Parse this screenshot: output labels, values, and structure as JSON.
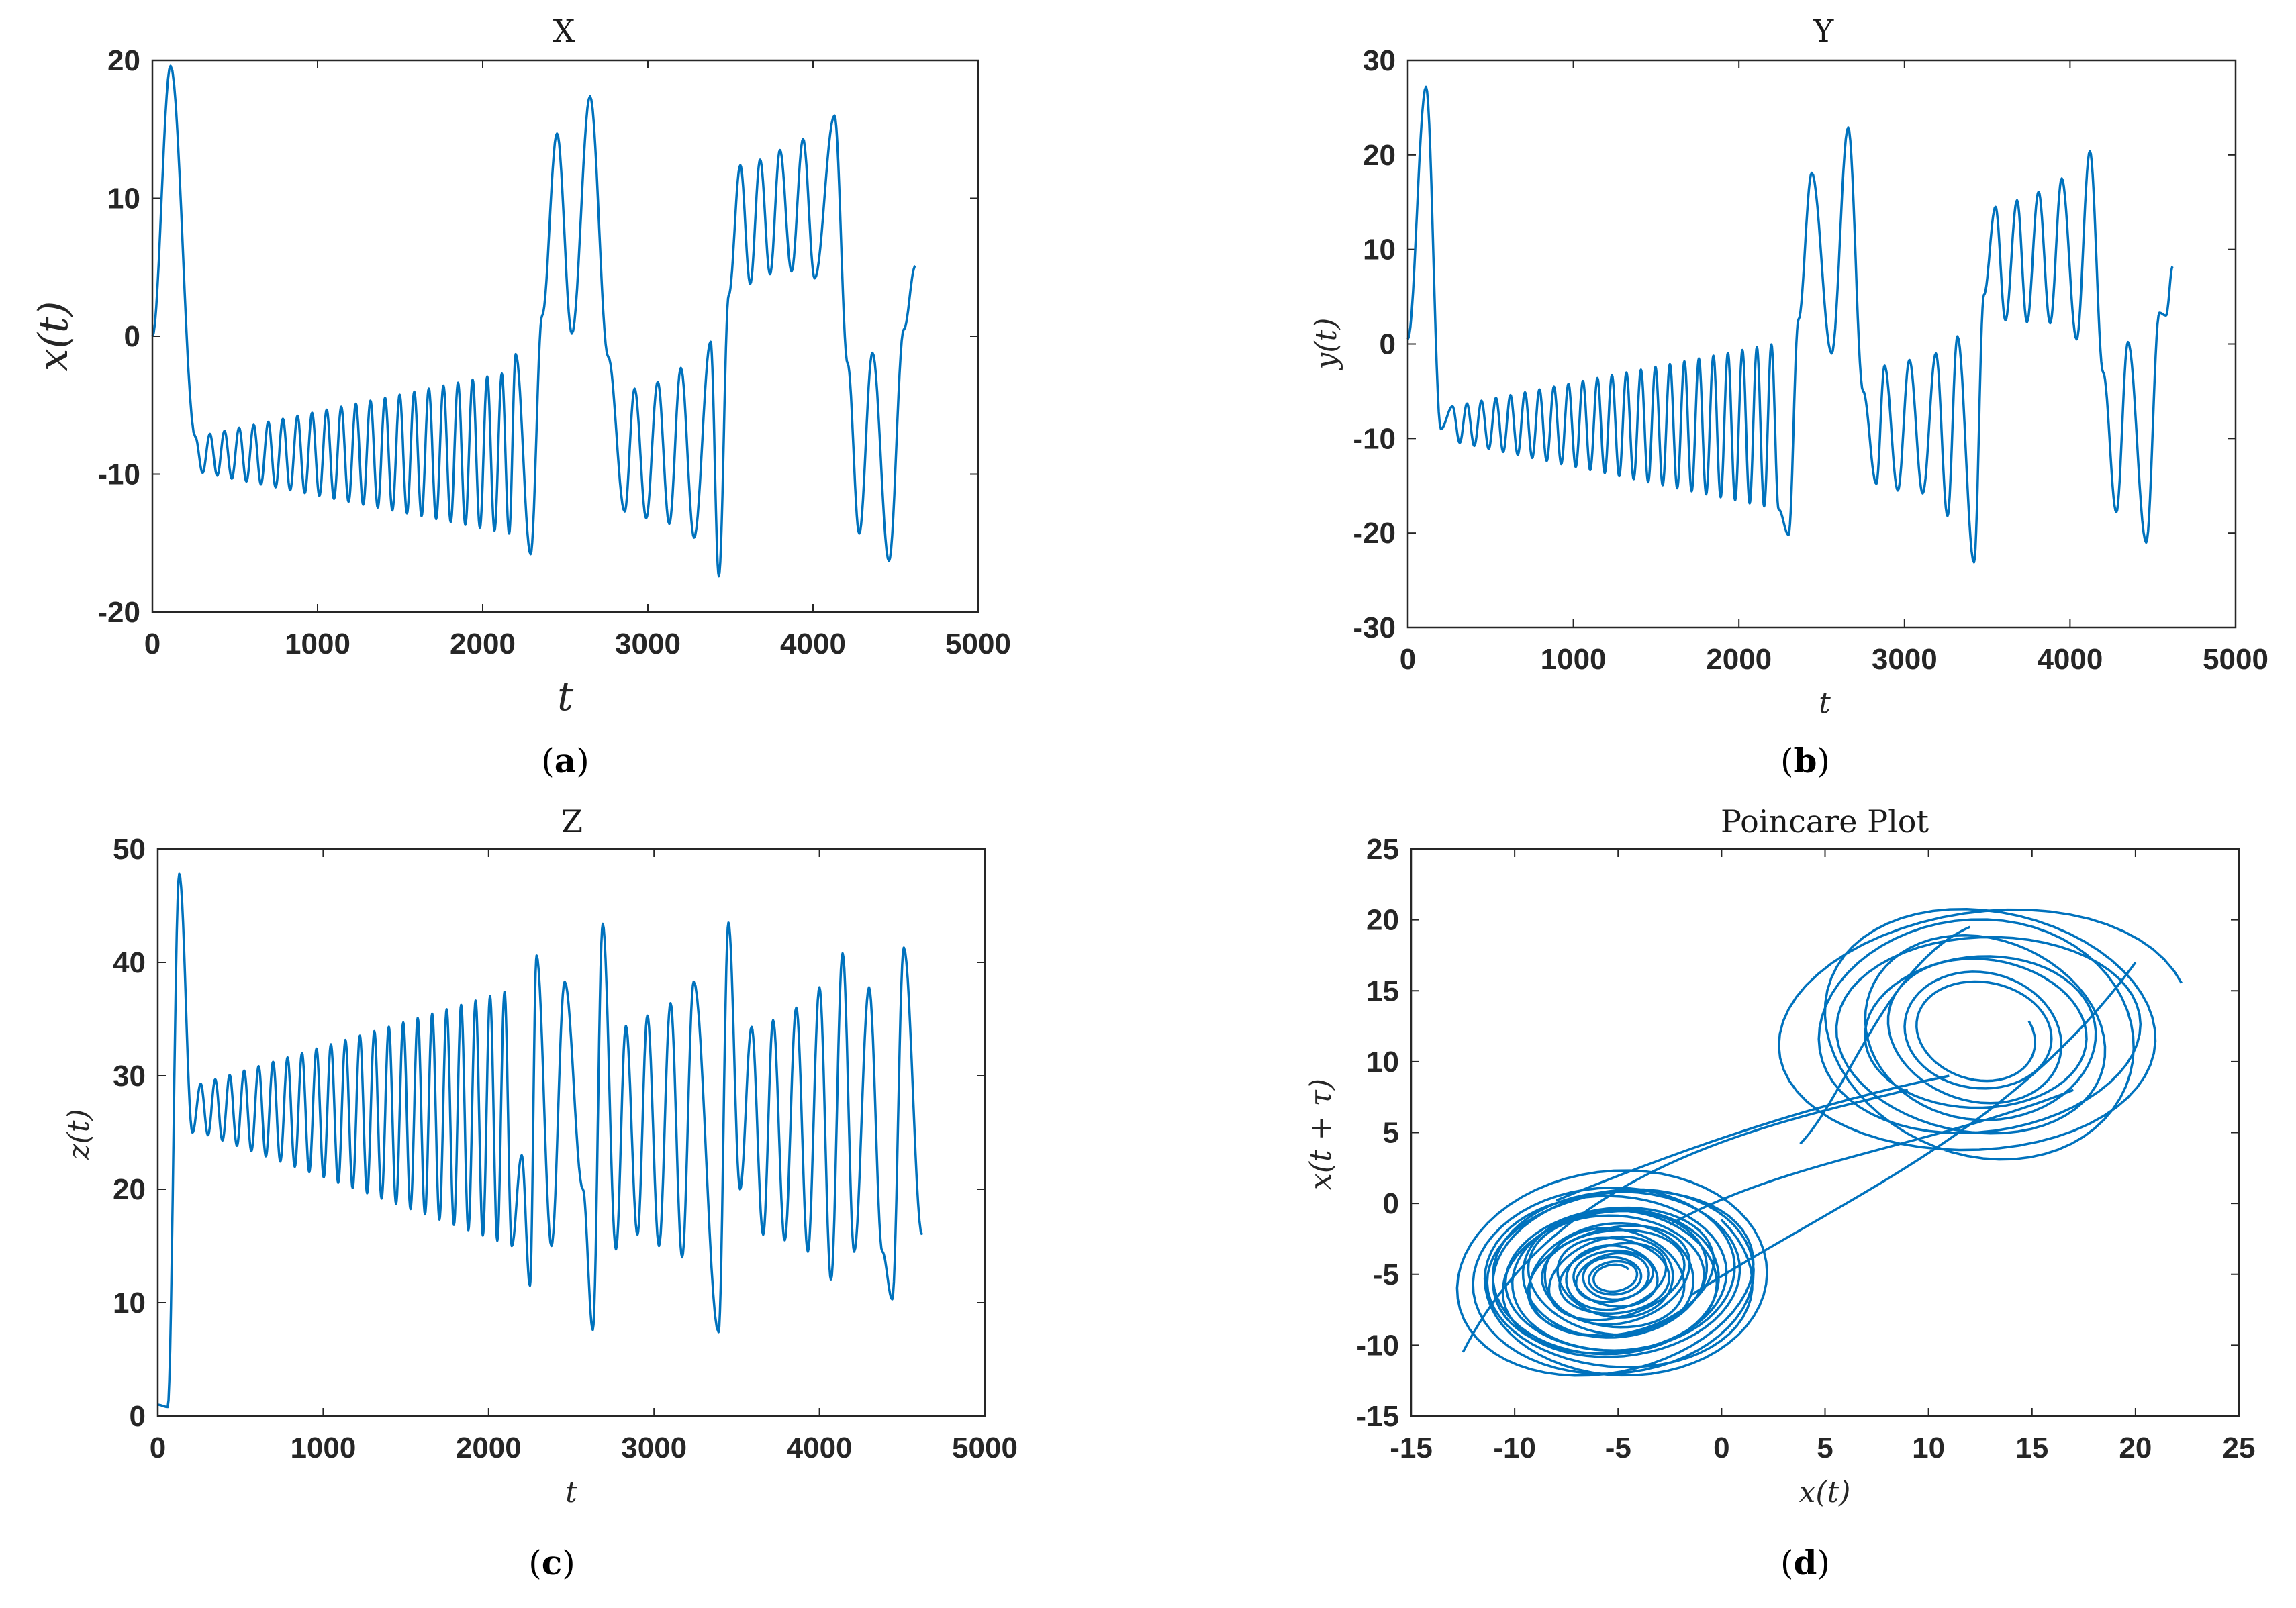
{
  "chart_data": [
    {
      "id": "a",
      "type": "line",
      "title": "X",
      "xlabel": "t",
      "ylabel": "x(t)",
      "caption_letter": "a",
      "xlim": [
        0,
        5000
      ],
      "ylim": [
        -20,
        20
      ],
      "xticks": [
        0,
        1000,
        2000,
        3000,
        4000,
        5000
      ],
      "yticks": [
        -20,
        -10,
        0,
        10,
        20
      ],
      "t_end": 4620,
      "segments": [
        {
          "kind": "peak",
          "t": 0,
          "v": 0
        },
        {
          "kind": "peak",
          "t": 110,
          "v": 19.6
        },
        {
          "kind": "osc",
          "t0": 260,
          "t1": 2160,
          "n": 22,
          "hi0": -7.3,
          "hi1": -2.6,
          "lo0": -9.8,
          "lo1": -14.3
        },
        {
          "kind": "peak",
          "t": 2200,
          "v": -1.3
        },
        {
          "kind": "peak",
          "t": 2290,
          "v": -15.8
        },
        {
          "kind": "peak",
          "t": 2360,
          "v": 1.5
        },
        {
          "kind": "peak",
          "t": 2450,
          "v": 14.7
        },
        {
          "kind": "peak",
          "t": 2540,
          "v": 0.2
        },
        {
          "kind": "peak",
          "t": 2650,
          "v": 17.4
        },
        {
          "kind": "peak",
          "t": 2760,
          "v": -1.5
        },
        {
          "kind": "peak",
          "t": 2860,
          "v": -12.7
        },
        {
          "kind": "peak",
          "t": 2920,
          "v": -3.8
        },
        {
          "kind": "peak",
          "t": 2990,
          "v": -13.2
        },
        {
          "kind": "peak",
          "t": 3060,
          "v": -3.3
        },
        {
          "kind": "peak",
          "t": 3130,
          "v": -13.6
        },
        {
          "kind": "peak",
          "t": 3200,
          "v": -2.3
        },
        {
          "kind": "peak",
          "t": 3280,
          "v": -14.6
        },
        {
          "kind": "peak",
          "t": 3380,
          "v": -0.4
        },
        {
          "kind": "peak",
          "t": 3430,
          "v": -17.4
        },
        {
          "kind": "peak",
          "t": 3490,
          "v": 3.0
        },
        {
          "kind": "peak",
          "t": 3560,
          "v": 12.4
        },
        {
          "kind": "peak",
          "t": 3620,
          "v": 3.8
        },
        {
          "kind": "peak",
          "t": 3680,
          "v": 12.8
        },
        {
          "kind": "peak",
          "t": 3740,
          "v": 4.5
        },
        {
          "kind": "peak",
          "t": 3800,
          "v": 13.5
        },
        {
          "kind": "peak",
          "t": 3870,
          "v": 4.7
        },
        {
          "kind": "peak",
          "t": 3940,
          "v": 14.3
        },
        {
          "kind": "peak",
          "t": 4010,
          "v": 4.2
        },
        {
          "kind": "peak",
          "t": 4130,
          "v": 16.0
        },
        {
          "kind": "peak",
          "t": 4210,
          "v": -2.0
        },
        {
          "kind": "peak",
          "t": 4280,
          "v": -14.3
        },
        {
          "kind": "peak",
          "t": 4360,
          "v": -1.2
        },
        {
          "kind": "peak",
          "t": 4460,
          "v": -16.3
        },
        {
          "kind": "peak",
          "t": 4550,
          "v": 0.5
        },
        {
          "kind": "peak",
          "t": 4620,
          "v": 5.1
        }
      ]
    },
    {
      "id": "b",
      "type": "line",
      "title": "Y",
      "xlabel": "t",
      "ylabel": "y(t)",
      "caption_letter": "b",
      "xlim": [
        0,
        5000
      ],
      "ylim": [
        -30,
        30
      ],
      "xticks": [
        0,
        1000,
        2000,
        3000,
        4000,
        5000
      ],
      "yticks": [
        -30,
        -20,
        -10,
        0,
        10,
        20,
        30
      ],
      "t_end": 4620,
      "segments": [
        {
          "kind": "peak",
          "t": 0,
          "v": 0.5
        },
        {
          "kind": "peak",
          "t": 110,
          "v": 27.2
        },
        {
          "kind": "peak",
          "t": 200,
          "v": -9.0
        },
        {
          "kind": "osc",
          "t0": 270,
          "t1": 2240,
          "n": 23,
          "hi0": -6.6,
          "hi1": 0.1,
          "lo0": -10.3,
          "lo1": -17.5
        },
        {
          "kind": "peak",
          "t": 2300,
          "v": -20.2
        },
        {
          "kind": "peak",
          "t": 2360,
          "v": 2.6
        },
        {
          "kind": "peak",
          "t": 2440,
          "v": 18.1
        },
        {
          "kind": "peak",
          "t": 2560,
          "v": -1.0
        },
        {
          "kind": "peak",
          "t": 2660,
          "v": 22.9
        },
        {
          "kind": "peak",
          "t": 2750,
          "v": -5.0
        },
        {
          "kind": "peak",
          "t": 2830,
          "v": -14.8
        },
        {
          "kind": "peak",
          "t": 2880,
          "v": -2.3
        },
        {
          "kind": "peak",
          "t": 2960,
          "v": -15.5
        },
        {
          "kind": "peak",
          "t": 3030,
          "v": -1.7
        },
        {
          "kind": "peak",
          "t": 3110,
          "v": -15.8
        },
        {
          "kind": "peak",
          "t": 3190,
          "v": -1.0
        },
        {
          "kind": "peak",
          "t": 3260,
          "v": -18.2
        },
        {
          "kind": "peak",
          "t": 3320,
          "v": 0.8
        },
        {
          "kind": "peak",
          "t": 3420,
          "v": -23.1
        },
        {
          "kind": "peak",
          "t": 3480,
          "v": 5.2
        },
        {
          "kind": "peak",
          "t": 3550,
          "v": 14.5
        },
        {
          "kind": "peak",
          "t": 3610,
          "v": 2.5
        },
        {
          "kind": "peak",
          "t": 3680,
          "v": 15.2
        },
        {
          "kind": "peak",
          "t": 3740,
          "v": 2.3
        },
        {
          "kind": "peak",
          "t": 3810,
          "v": 16.1
        },
        {
          "kind": "peak",
          "t": 3880,
          "v": 2.2
        },
        {
          "kind": "peak",
          "t": 3950,
          "v": 17.5
        },
        {
          "kind": "peak",
          "t": 4040,
          "v": 0.5
        },
        {
          "kind": "peak",
          "t": 4120,
          "v": 20.4
        },
        {
          "kind": "peak",
          "t": 4200,
          "v": -3.0
        },
        {
          "kind": "peak",
          "t": 4280,
          "v": -17.8
        },
        {
          "kind": "peak",
          "t": 4350,
          "v": 0.2
        },
        {
          "kind": "peak",
          "t": 4460,
          "v": -21.0
        },
        {
          "kind": "peak",
          "t": 4540,
          "v": 3.3
        },
        {
          "kind": "peak",
          "t": 4580,
          "v": 3.0
        },
        {
          "kind": "peak",
          "t": 4620,
          "v": 8.2
        }
      ]
    },
    {
      "id": "c",
      "type": "line",
      "title": "Z",
      "xlabel": "t",
      "ylabel": "z(t)",
      "caption_letter": "c",
      "xlim": [
        0,
        5000
      ],
      "ylim": [
        0,
        50
      ],
      "xticks": [
        0,
        1000,
        2000,
        3000,
        4000,
        5000
      ],
      "yticks": [
        0,
        10,
        20,
        30,
        40,
        50
      ],
      "t_end": 4620,
      "segments": [
        {
          "kind": "peak",
          "t": 0,
          "v": 1.0
        },
        {
          "kind": "peak",
          "t": 60,
          "v": 0.8
        },
        {
          "kind": "peak",
          "t": 130,
          "v": 47.8
        },
        {
          "kind": "peak",
          "t": 210,
          "v": 25.0
        },
        {
          "kind": "osc",
          "t0": 260,
          "t1": 2140,
          "n": 22,
          "hi0": 29.3,
          "hi1": 37.6,
          "lo0": 25.0,
          "lo1": 15.0
        },
        {
          "kind": "peak",
          "t": 2200,
          "v": 23.0
        },
        {
          "kind": "peak",
          "t": 2250,
          "v": 11.5
        },
        {
          "kind": "peak",
          "t": 2290,
          "v": 40.6
        },
        {
          "kind": "peak",
          "t": 2380,
          "v": 15.0
        },
        {
          "kind": "peak",
          "t": 2460,
          "v": 38.3
        },
        {
          "kind": "peak",
          "t": 2570,
          "v": 20.0
        },
        {
          "kind": "peak",
          "t": 2630,
          "v": 7.6
        },
        {
          "kind": "peak",
          "t": 2690,
          "v": 43.4
        },
        {
          "kind": "peak",
          "t": 2770,
          "v": 14.7
        },
        {
          "kind": "peak",
          "t": 2830,
          "v": 34.4
        },
        {
          "kind": "peak",
          "t": 2900,
          "v": 16.0
        },
        {
          "kind": "peak",
          "t": 2960,
          "v": 35.3
        },
        {
          "kind": "peak",
          "t": 3030,
          "v": 15.0
        },
        {
          "kind": "peak",
          "t": 3100,
          "v": 36.4
        },
        {
          "kind": "peak",
          "t": 3170,
          "v": 14.0
        },
        {
          "kind": "peak",
          "t": 3240,
          "v": 38.3
        },
        {
          "kind": "peak",
          "t": 3390,
          "v": 7.4
        },
        {
          "kind": "peak",
          "t": 3450,
          "v": 43.5
        },
        {
          "kind": "peak",
          "t": 3520,
          "v": 20.0
        },
        {
          "kind": "peak",
          "t": 3590,
          "v": 34.3
        },
        {
          "kind": "peak",
          "t": 3660,
          "v": 16.0
        },
        {
          "kind": "peak",
          "t": 3720,
          "v": 34.9
        },
        {
          "kind": "peak",
          "t": 3790,
          "v": 15.5
        },
        {
          "kind": "peak",
          "t": 3860,
          "v": 36.0
        },
        {
          "kind": "peak",
          "t": 3930,
          "v": 14.5
        },
        {
          "kind": "peak",
          "t": 4000,
          "v": 37.8
        },
        {
          "kind": "peak",
          "t": 4070,
          "v": 12.0
        },
        {
          "kind": "peak",
          "t": 4140,
          "v": 40.8
        },
        {
          "kind": "peak",
          "t": 4210,
          "v": 14.5
        },
        {
          "kind": "peak",
          "t": 4300,
          "v": 37.8
        },
        {
          "kind": "peak",
          "t": 4380,
          "v": 14.5
        },
        {
          "kind": "peak",
          "t": 4440,
          "v": 10.3
        },
        {
          "kind": "peak",
          "t": 4510,
          "v": 41.3
        },
        {
          "kind": "peak",
          "t": 4620,
          "v": 16.0
        }
      ]
    },
    {
      "id": "d",
      "type": "line",
      "title": "Poincare Plot",
      "xlabel": "x(t)",
      "ylabel": "x(t + τ)",
      "caption_letter": "d",
      "xlim": [
        -15,
        25
      ],
      "ylim": [
        -15,
        25
      ],
      "xticks": [
        -15,
        -10,
        -5,
        0,
        5,
        10,
        15,
        20,
        25
      ],
      "yticks": [
        -15,
        -10,
        -5,
        0,
        5,
        10,
        15,
        20,
        25
      ],
      "left_lobe": {
        "cx": -5.2,
        "cy": -5.2,
        "rx_min": 0.9,
        "rx_max": 8.5,
        "ry_min": 0.8,
        "ry_max": 8.0,
        "tilt_deg": 38,
        "loops": 24
      },
      "right_lobe": {
        "cx": 12.5,
        "cy": 12.0,
        "rx_min": 2.5,
        "rx_max": 10.5,
        "ry_min": 3.2,
        "ry_max": 10.5,
        "tilt_deg": 20,
        "loops": 9
      },
      "connectors": [
        [
          [
            -8.0,
            0.2
          ],
          [
            0.0,
            5.0
          ],
          [
            6.0,
            7.5
          ],
          [
            11.0,
            9.0
          ]
        ],
        [
          [
            -2.5,
            -1.5
          ],
          [
            3.0,
            3.0
          ],
          [
            10.0,
            4.0
          ],
          [
            17.0,
            8.0
          ]
        ],
        [
          [
            -1.5,
            -6.5
          ],
          [
            6.0,
            0.5
          ],
          [
            14.0,
            5.0
          ],
          [
            20.0,
            17.0
          ]
        ],
        [
          [
            3.8,
            4.2
          ],
          [
            6.0,
            7.5
          ],
          [
            8.0,
            17.0
          ],
          [
            12.0,
            19.5
          ]
        ],
        [
          [
            -12.5,
            -10.5
          ],
          [
            -8.0,
            2.5
          ],
          [
            2.0,
            5.5
          ],
          [
            9.0,
            8.0
          ]
        ]
      ]
    }
  ]
}
